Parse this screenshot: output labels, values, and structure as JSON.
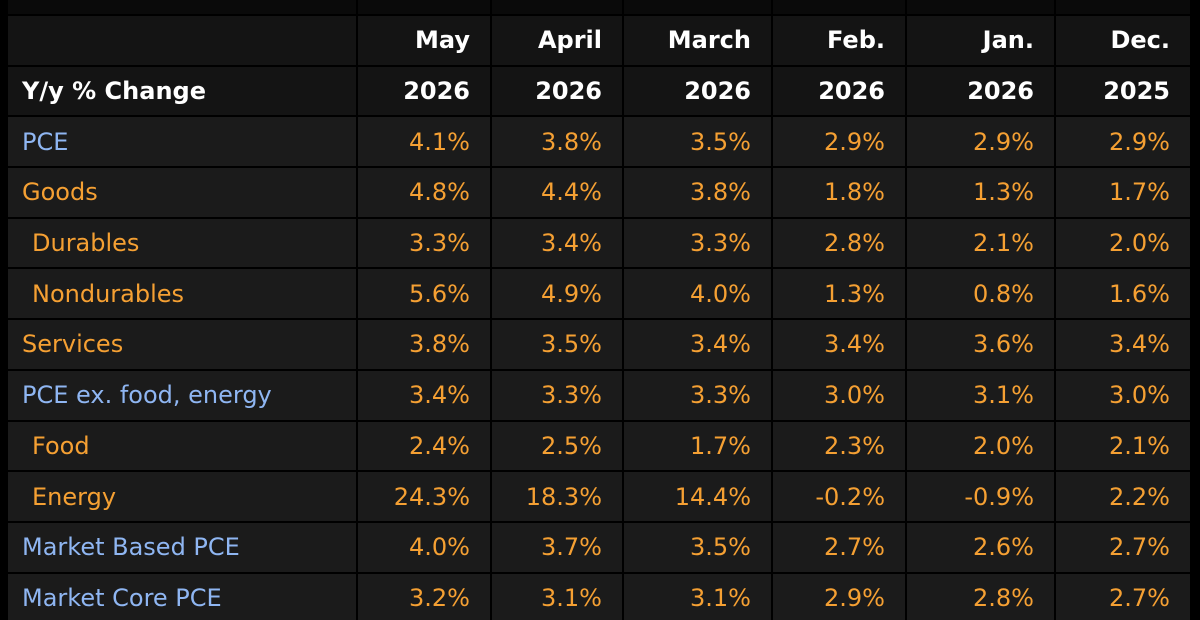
{
  "header": {
    "title": "Y/y % Change",
    "months": [
      "May",
      "April",
      "March",
      "Feb.",
      "Jan.",
      "Dec."
    ],
    "years": [
      "2026",
      "2026",
      "2026",
      "2026",
      "2026",
      "2025"
    ]
  },
  "table": {
    "rows": [
      {
        "label": "PCE",
        "color": "#8fb6f2",
        "indent": false,
        "values": [
          "4.1%",
          "3.8%",
          "3.5%",
          "2.9%",
          "2.9%",
          "2.9%"
        ]
      },
      {
        "label": "Goods",
        "color": "#f5a033",
        "indent": false,
        "values": [
          "4.8%",
          "4.4%",
          "3.8%",
          "1.8%",
          "1.3%",
          "1.7%"
        ]
      },
      {
        "label": "Durables",
        "color": "#f5a033",
        "indent": true,
        "values": [
          "3.3%",
          "3.4%",
          "3.3%",
          "2.8%",
          "2.1%",
          "2.0%"
        ]
      },
      {
        "label": "Nondurables",
        "color": "#f5a033",
        "indent": true,
        "values": [
          "5.6%",
          "4.9%",
          "4.0%",
          "1.3%",
          "0.8%",
          "1.6%"
        ]
      },
      {
        "label": "Services",
        "color": "#f5a033",
        "indent": false,
        "values": [
          "3.8%",
          "3.5%",
          "3.4%",
          "3.4%",
          "3.6%",
          "3.4%"
        ]
      },
      {
        "label": "PCE ex. food, energy",
        "color": "#8fb6f2",
        "indent": false,
        "values": [
          "3.4%",
          "3.3%",
          "3.3%",
          "3.0%",
          "3.1%",
          "3.0%"
        ]
      },
      {
        "label": "Food",
        "color": "#f5a033",
        "indent": true,
        "values": [
          "2.4%",
          "2.5%",
          "1.7%",
          "2.3%",
          "2.0%",
          "2.1%"
        ]
      },
      {
        "label": "Energy",
        "color": "#f5a033",
        "indent": true,
        "values": [
          "24.3%",
          "18.3%",
          "14.4%",
          "-0.2%",
          "-0.9%",
          "2.2%"
        ]
      },
      {
        "label": "Market Based PCE",
        "color": "#8fb6f2",
        "indent": false,
        "values": [
          "4.0%",
          "3.7%",
          "3.5%",
          "2.7%",
          "2.6%",
          "2.7%"
        ]
      },
      {
        "label": "Market Core PCE",
        "color": "#8fb6f2",
        "indent": false,
        "values": [
          "3.2%",
          "3.1%",
          "3.1%",
          "2.9%",
          "2.8%",
          "2.7%"
        ]
      }
    ]
  }
}
